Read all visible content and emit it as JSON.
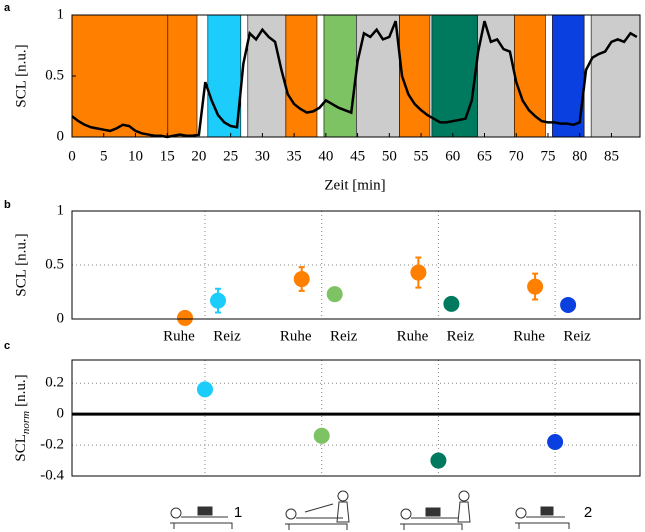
{
  "chart_data": [
    {
      "type": "line",
      "panel_label": "a",
      "xlabel": "Zeit [min]",
      "ylabel": "SCL [n.u.]",
      "xlim": [
        0,
        89.5
      ],
      "ylim": [
        0,
        1
      ],
      "xticks": [
        0,
        5,
        10,
        15,
        20,
        25,
        30,
        35,
        40,
        45,
        50,
        55,
        60,
        65,
        70,
        75,
        80,
        85
      ],
      "yticks": [
        0,
        0.5,
        1
      ],
      "bands": [
        {
          "start": 0,
          "end": 15.1,
          "color": "#ff8000"
        },
        {
          "start": 15.1,
          "end": 19.7,
          "color": "#ff8000"
        },
        {
          "start": 21.4,
          "end": 26.6,
          "color": "#1ccdfb"
        },
        {
          "start": 27.7,
          "end": 33.7,
          "color": "#cccccc"
        },
        {
          "start": 33.7,
          "end": 38.6,
          "color": "#ff8000"
        },
        {
          "start": 39.7,
          "end": 44.8,
          "color": "#7dc263"
        },
        {
          "start": 44.8,
          "end": 51.6,
          "color": "#cccccc"
        },
        {
          "start": 51.6,
          "end": 56.4,
          "color": "#ff8000"
        },
        {
          "start": 56.7,
          "end": 63.9,
          "color": "#007a5e"
        },
        {
          "start": 63.9,
          "end": 69.7,
          "color": "#cccccc"
        },
        {
          "start": 69.7,
          "end": 74.6,
          "color": "#ff8000"
        },
        {
          "start": 75.7,
          "end": 80.7,
          "color": "#0a40e0"
        },
        {
          "start": 81.8,
          "end": 89.5,
          "color": "#cccccc"
        }
      ],
      "line_color": "#000000",
      "x": [
        0,
        1,
        2,
        3,
        4,
        5,
        6,
        7,
        8,
        9,
        10,
        11,
        12,
        13,
        14,
        15,
        16,
        17,
        18,
        19,
        20,
        21,
        22,
        23,
        24,
        25,
        26,
        27,
        28,
        29,
        30,
        31,
        32,
        33,
        34,
        35,
        36,
        37,
        38,
        39,
        40,
        41,
        42,
        43,
        44,
        45,
        46,
        47,
        48,
        49,
        50,
        51,
        52,
        53,
        54,
        55,
        56,
        57,
        58,
        59,
        60,
        61,
        62,
        63,
        64,
        65,
        66,
        67,
        68,
        69,
        70,
        71,
        72,
        73,
        74,
        75,
        76,
        77,
        78,
        79,
        80,
        81,
        82,
        83,
        84,
        85,
        86,
        87,
        88,
        89
      ],
      "values": [
        0.17,
        0.13,
        0.1,
        0.08,
        0.07,
        0.06,
        0.05,
        0.07,
        0.1,
        0.09,
        0.05,
        0.03,
        0.02,
        0.01,
        0.01,
        0.0,
        0.01,
        0.02,
        0.01,
        0.01,
        0.02,
        0.45,
        0.3,
        0.18,
        0.12,
        0.09,
        0.08,
        0.6,
        0.85,
        0.8,
        0.88,
        0.82,
        0.78,
        0.55,
        0.35,
        0.27,
        0.23,
        0.2,
        0.21,
        0.24,
        0.3,
        0.27,
        0.24,
        0.22,
        0.2,
        0.62,
        0.85,
        0.82,
        0.88,
        0.8,
        0.82,
        0.95,
        0.5,
        0.35,
        0.27,
        0.22,
        0.18,
        0.15,
        0.12,
        0.12,
        0.13,
        0.14,
        0.15,
        0.3,
        0.7,
        0.95,
        0.78,
        0.8,
        0.72,
        0.7,
        0.45,
        0.3,
        0.22,
        0.17,
        0.13,
        0.12,
        0.12,
        0.11,
        0.11,
        0.1,
        0.12,
        0.55,
        0.65,
        0.68,
        0.7,
        0.78,
        0.8,
        0.78,
        0.85,
        0.82
      ]
    },
    {
      "type": "scatter",
      "panel_label": "b",
      "ylabel": "SCL [n.u.]",
      "ylim": [
        0,
        1
      ],
      "yticks": [
        0,
        0.5,
        1
      ],
      "grid": true,
      "categories": [
        "Ruhe",
        "Reiz",
        "Ruhe",
        "Reiz",
        "Ruhe",
        "Reiz",
        "Ruhe",
        "Reiz"
      ],
      "values": [
        0.01,
        0.17,
        0.37,
        0.23,
        0.43,
        0.14,
        0.3,
        0.13
      ],
      "errors": [
        null,
        0.11,
        0.11,
        null,
        0.14,
        null,
        0.12,
        null
      ],
      "colors": [
        "#ff8000",
        "#1ccdfb",
        "#ff8000",
        "#7dc263",
        "#ff8000",
        "#007a5e",
        "#ff8000",
        "#0a40e0"
      ]
    },
    {
      "type": "scatter",
      "panel_label": "c",
      "ylabel": "SCL",
      "ylabel_sub": "norm",
      "ylabel_unit": "[n.u.]",
      "ylim": [
        -0.4,
        0.35
      ],
      "yticks": [
        -0.4,
        -0.2,
        0,
        0.2
      ],
      "grid": true,
      "categories": [
        "1",
        null,
        null,
        "2"
      ],
      "values": [
        0.16,
        -0.14,
        -0.3,
        -0.18
      ],
      "colors": [
        "#1ccdfb",
        "#7dc263",
        "#007a5e",
        "#0a40e0"
      ]
    }
  ]
}
